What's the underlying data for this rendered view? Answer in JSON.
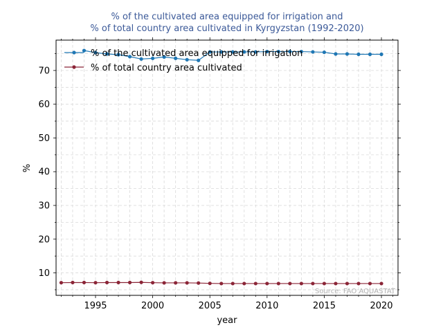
{
  "chart_data": {
    "type": "line",
    "title_lines": [
      "% of the cultivated area equipped for irrigation and",
      "% of total country area cultivated in Kyrgyzstan (1992-2020)"
    ],
    "xlabel": "year",
    "ylabel": "%",
    "xlim": [
      1991.55,
      2021.45
    ],
    "ylim": [
      3.35,
      79.0
    ],
    "x_ticks": [
      1995,
      2000,
      2005,
      2010,
      2015,
      2020
    ],
    "y_ticks": [
      10,
      20,
      30,
      40,
      50,
      60,
      70
    ],
    "grid": true,
    "legend_position": "upper-left",
    "source_note": "Source: FAO AQUASTAT",
    "colors": {
      "series1": "#1f77b4",
      "series2": "#8b2537",
      "title": "#3b5998"
    },
    "series": [
      {
        "name": "% of the cultivated area equipped for irrigation",
        "x": [
          1994,
          1995,
          1996,
          1997,
          1998,
          1999,
          2000,
          2001,
          2002,
          2003,
          2004,
          2005,
          2006,
          2007,
          2008,
          2009,
          2010,
          2011,
          2012,
          2013,
          2014,
          2015,
          2016,
          2017,
          2018,
          2019,
          2020
        ],
        "values": [
          75.9,
          75.3,
          74.9,
          74.7,
          74.1,
          73.4,
          73.6,
          74.0,
          73.6,
          73.2,
          73.0,
          75.5,
          75.5,
          75.5,
          75.5,
          75.5,
          75.6,
          75.6,
          75.6,
          75.6,
          75.5,
          75.4,
          74.9,
          74.9,
          74.8,
          74.8,
          74.8
        ]
      },
      {
        "name": "% of total country area cultivated",
        "x": [
          1992,
          1993,
          1994,
          1995,
          1996,
          1997,
          1998,
          1999,
          2000,
          2001,
          2002,
          2003,
          2004,
          2005,
          2006,
          2007,
          2008,
          2009,
          2010,
          2011,
          2012,
          2013,
          2014,
          2015,
          2016,
          2017,
          2018,
          2019,
          2020
        ],
        "values": [
          7.1,
          7.15,
          7.15,
          7.1,
          7.15,
          7.15,
          7.15,
          7.2,
          7.1,
          7.05,
          7.05,
          7.05,
          7.0,
          6.9,
          6.85,
          6.85,
          6.85,
          6.85,
          6.85,
          6.85,
          6.85,
          6.85,
          6.85,
          6.85,
          6.85,
          6.85,
          6.85,
          6.85,
          6.85
        ]
      }
    ]
  }
}
